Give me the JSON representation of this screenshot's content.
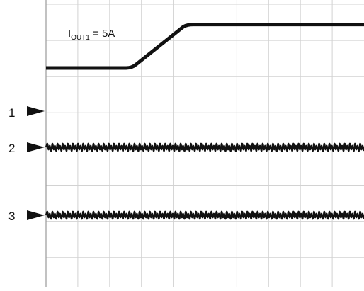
{
  "annotation": {
    "main": "I",
    "sub": "OUT1",
    "value": " = 5A"
  },
  "markers": [
    {
      "label": "1"
    },
    {
      "label": "2"
    },
    {
      "label": "3"
    }
  ],
  "colors": {
    "trace": "#111111",
    "grid": "#d2d2d2",
    "border": "#9a9a9a",
    "background": "#ffffff"
  },
  "chart_data": {
    "type": "line",
    "title": "",
    "xlabel": "",
    "ylabel": "",
    "grid": true,
    "divisions": {
      "x": 10,
      "y": 8
    },
    "series": [
      {
        "kind": "step",
        "low": 0.0,
        "high": 1.0,
        "rise_start": 2.7,
        "rise_end": 4.5
      },
      {
        "kind": "ripple",
        "baseline": -2.3,
        "amplitude": 0.22,
        "cycles": 62
      },
      {
        "kind": "ripple",
        "baseline": -4.5,
        "amplitude": 0.22,
        "cycles": 62
      }
    ]
  }
}
